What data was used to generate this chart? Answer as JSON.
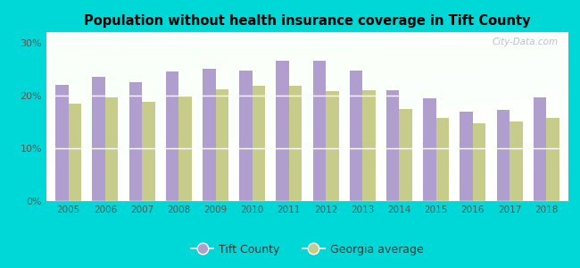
{
  "title": "Population without health insurance coverage in Tift County",
  "years": [
    2005,
    2006,
    2007,
    2008,
    2009,
    2010,
    2011,
    2012,
    2013,
    2014,
    2015,
    2016,
    2017,
    2018
  ],
  "tift_county": [
    22.0,
    23.5,
    22.5,
    24.5,
    25.0,
    24.7,
    26.5,
    26.5,
    24.7,
    21.0,
    19.5,
    17.0,
    17.3,
    19.7
  ],
  "georgia_avg": [
    18.5,
    19.7,
    18.8,
    20.0,
    21.2,
    21.8,
    21.8,
    20.8,
    21.0,
    17.5,
    15.8,
    14.8,
    15.0,
    15.8
  ],
  "tift_color": "#b09ece",
  "georgia_color": "#c8cc8a",
  "background_color": "#00d8d8",
  "yticks": [
    0,
    10,
    20,
    30
  ],
  "ylim": [
    0,
    32
  ],
  "watermark": "City-Data.com",
  "legend_tift": "Tift County",
  "legend_georgia": "Georgia average"
}
